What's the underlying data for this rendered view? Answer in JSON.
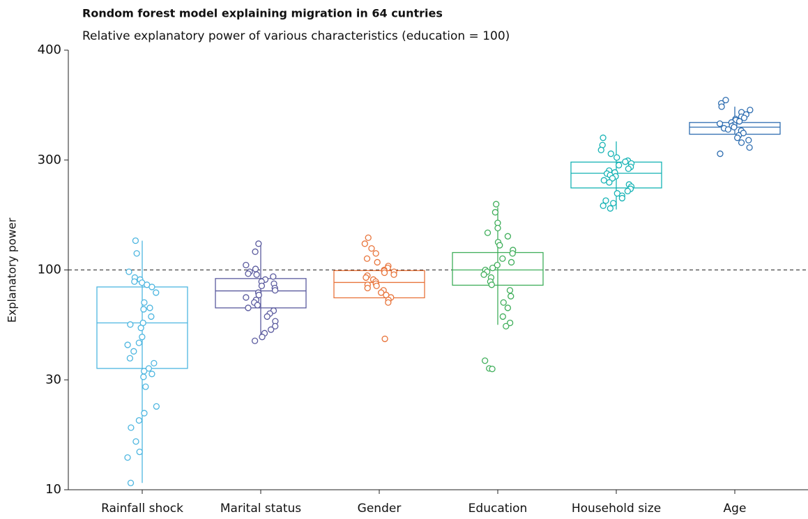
{
  "chart_data": {
    "type": "box",
    "title": "Rondom forest model explaining migration in 64 cuntries",
    "subtitle": "Relative explanatory power of various characteristics (education = 100)",
    "y_label": "Explanatory power",
    "categories": [
      "Rainfall shock",
      "Marital status",
      "Gender",
      "Education",
      "Household size",
      "Age"
    ],
    "ylim": [
      10,
      400
    ],
    "yticks": [
      10,
      30,
      100,
      300,
      400
    ],
    "log": true,
    "reference_line": 100,
    "boxes": [
      {
        "color": "#4db6e0",
        "low": 10.7,
        "q1": 34,
        "median": 56,
        "q3": 83,
        "high": 134,
        "points": [
          134,
          118,
          98,
          92,
          90,
          88,
          87,
          85,
          83,
          78,
          70,
          66,
          65,
          60,
          56,
          55,
          53,
          48,
          45,
          44,
          41,
          38,
          36,
          34,
          33,
          32,
          31,
          28,
          23,
          21.5,
          20,
          18.6,
          16.2,
          14.6,
          13.8,
          10.7
        ]
      },
      {
        "color": "#5a5a9e",
        "low": 48.5,
        "q1": 66,
        "median": 79.5,
        "q3": 91,
        "high": 130,
        "points": [
          130,
          120,
          105,
          101,
          98,
          96,
          95,
          93,
          90,
          88,
          86,
          84,
          82,
          80,
          78,
          76,
          74,
          72,
          70,
          68,
          66,
          64,
          62,
          60,
          57,
          54,
          52,
          50,
          48,
          46
        ]
      },
      {
        "color": "#e8743b",
        "q1": 73.7,
        "median": 87.2,
        "q3": 99.3,
        "points": [
          138,
          130,
          124,
          118,
          112,
          108,
          104,
          102,
          100,
          99,
          98,
          97,
          95,
          94,
          92,
          90,
          88,
          86,
          85,
          84,
          82,
          80,
          78,
          76,
          74,
          72,
          70,
          47
        ]
      },
      {
        "color": "#3fae5a",
        "low": 54.8,
        "q1": 84.6,
        "median": 100,
        "q3": 119,
        "high": 187,
        "points": [
          193,
          178,
          160,
          152,
          145,
          140,
          132,
          128,
          122,
          118,
          112,
          108,
          105,
          102,
          100,
          98,
          95,
          92,
          88,
          85,
          80,
          75,
          70,
          66,
          60,
          56,
          54,
          37,
          34,
          33.8
        ]
      },
      {
        "color": "#17b3b5",
        "low": 183,
        "q1": 227,
        "median": 263,
        "q3": 294,
        "high": 315,
        "points": [
          318,
          312,
          308,
          305,
          302,
          298,
          295,
          290,
          285,
          280,
          275,
          270,
          265,
          262,
          258,
          255,
          250,
          245,
          240,
          235,
          230,
          225,
          220,
          215,
          210,
          205,
          200,
          195,
          190,
          185
        ]
      },
      {
        "color": "#2e6db0",
        "low": 321,
        "q1": 321,
        "median": 327,
        "q3": 331,
        "high": 345,
        "points": [
          351,
          348,
          345,
          342,
          340,
          338,
          336,
          335,
          334,
          333,
          332,
          331,
          330,
          329,
          328,
          327,
          326,
          325,
          324,
          322,
          320,
          318,
          316,
          314,
          310,
          305
        ]
      }
    ]
  }
}
